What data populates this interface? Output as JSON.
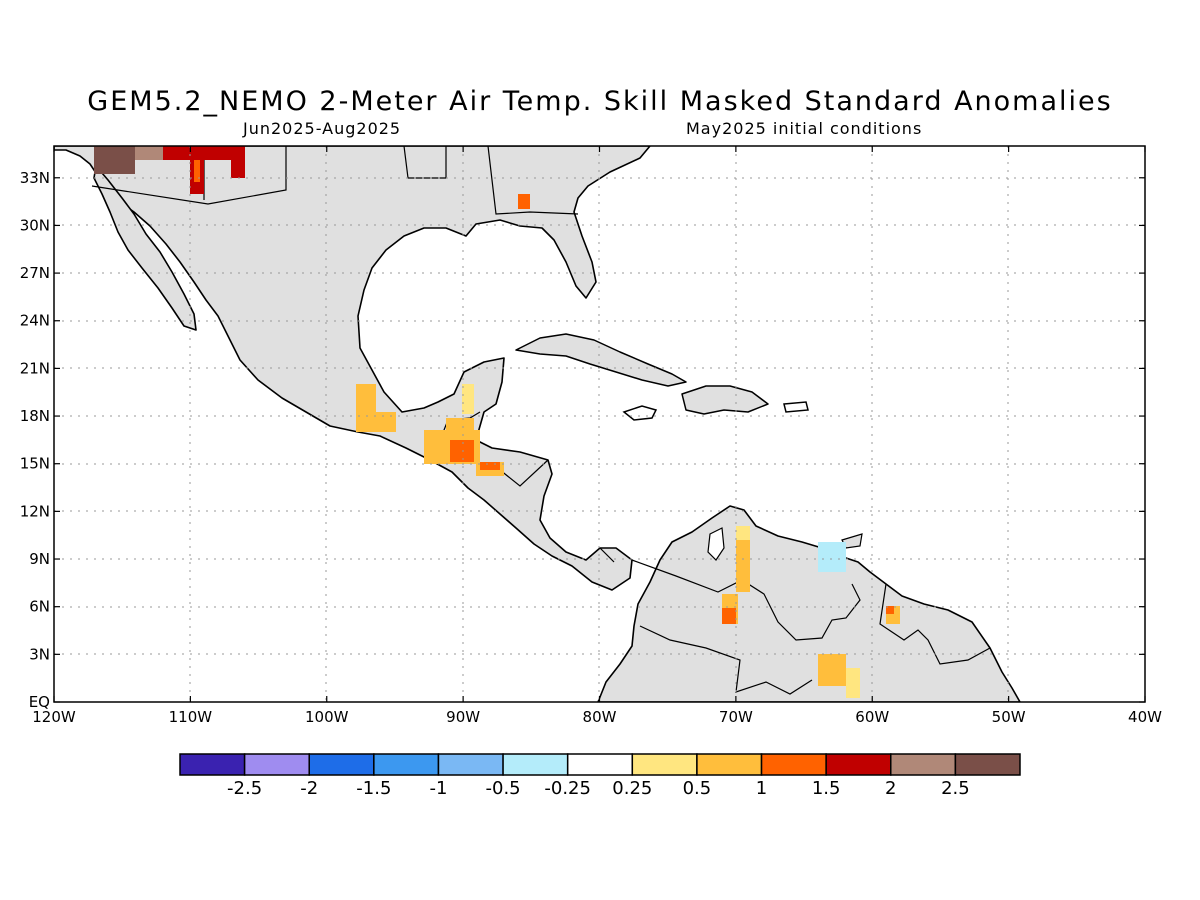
{
  "header": {
    "title": "GEM5.2_NEMO 2-Meter Air Temp. Skill Masked Standard Anomalies",
    "period": "Jun2025-Aug2025",
    "init": "May2025 initial conditions"
  },
  "map": {
    "lon_range": [
      -120,
      -40
    ],
    "lat_range": [
      0,
      35
    ],
    "lon_ticks": [
      {
        "value": -120,
        "label": "120W"
      },
      {
        "value": -110,
        "label": "110W"
      },
      {
        "value": -100,
        "label": "100W"
      },
      {
        "value": -90,
        "label": "90W"
      },
      {
        "value": -80,
        "label": "80W"
      },
      {
        "value": -70,
        "label": "70W"
      },
      {
        "value": -60,
        "label": "60W"
      },
      {
        "value": -50,
        "label": "50W"
      },
      {
        "value": -40,
        "label": "40W"
      }
    ],
    "lat_ticks": [
      {
        "value": 0,
        "label": "EQ"
      },
      {
        "value": 3,
        "label": "3N"
      },
      {
        "value": 6,
        "label": "6N"
      },
      {
        "value": 9,
        "label": "9N"
      },
      {
        "value": 12,
        "label": "12N"
      },
      {
        "value": 15,
        "label": "15N"
      },
      {
        "value": 18,
        "label": "18N"
      },
      {
        "value": 21,
        "label": "21N"
      },
      {
        "value": 24,
        "label": "24N"
      },
      {
        "value": 27,
        "label": "27N"
      },
      {
        "value": 30,
        "label": "30N"
      },
      {
        "value": 33,
        "label": "33N"
      }
    ],
    "land_color": "#e0e0e0",
    "anomaly_patches": [
      {
        "region": "SW USA / N Mexico",
        "lon": [
          -117,
          -114
        ],
        "lat": [
          34,
          35
        ],
        "value": 2.7
      },
      {
        "region": "SW USA / N Mexico",
        "lon": [
          -112,
          -106
        ],
        "lat": [
          33,
          35
        ],
        "value": 1.7
      },
      {
        "region": "NW Mexico",
        "lon": [
          -110,
          -109
        ],
        "lat": [
          31.5,
          34
        ],
        "value": 1.2
      },
      {
        "region": "Georgia",
        "lon": [
          -86,
          -85
        ],
        "lat": [
          31,
          32
        ],
        "value": 1.2
      },
      {
        "region": "S Mexico",
        "lon": [
          -98,
          -95.5
        ],
        "lat": [
          17,
          20
        ],
        "value": 0.8
      },
      {
        "region": "Guatemala",
        "lon": [
          -92,
          -88
        ],
        "lat": [
          15,
          18
        ],
        "value": 0.9
      },
      {
        "region": "Guatemala",
        "lon": [
          -90.5,
          -89
        ],
        "lat": [
          15.5,
          17
        ],
        "value": 1.3
      },
      {
        "region": "Honduras",
        "lon": [
          -89,
          -87
        ],
        "lat": [
          14,
          15
        ],
        "value": 0.9
      },
      {
        "region": "Venezuela",
        "lon": [
          -70,
          -69
        ],
        "lat": [
          7,
          11
        ],
        "value": 0.8
      },
      {
        "region": "Venezuela",
        "lon": [
          -71,
          -70
        ],
        "lat": [
          5,
          6.5
        ],
        "value": 1.2
      },
      {
        "region": "Venezuela",
        "lon": [
          -62.5,
          -61
        ],
        "lat": [
          1,
          3
        ],
        "value": 0.8
      },
      {
        "region": "Venezuela (east)",
        "lon": [
          -64,
          -62
        ],
        "lat": [
          8.5,
          10
        ],
        "value": -0.4
      },
      {
        "region": "Suriname",
        "lon": [
          -59,
          -58
        ],
        "lat": [
          5,
          6
        ],
        "value": 0.9
      }
    ]
  },
  "colorbar": {
    "colors": [
      "#3a22b0",
      "#9f8cf0",
      "#1e6de8",
      "#3c98f0",
      "#7ab8f4",
      "#b4ecfa",
      "#ffffff",
      "#ffe680",
      "#ffbe3c",
      "#ff6200",
      "#c00000",
      "#b08878",
      "#7a4f48"
    ],
    "labels": [
      "-2.5",
      "-2",
      "-1.5",
      "-1",
      "-0.5",
      "-0.25",
      "0.25",
      "0.5",
      "1",
      "1.5",
      "2",
      "2.5"
    ]
  }
}
